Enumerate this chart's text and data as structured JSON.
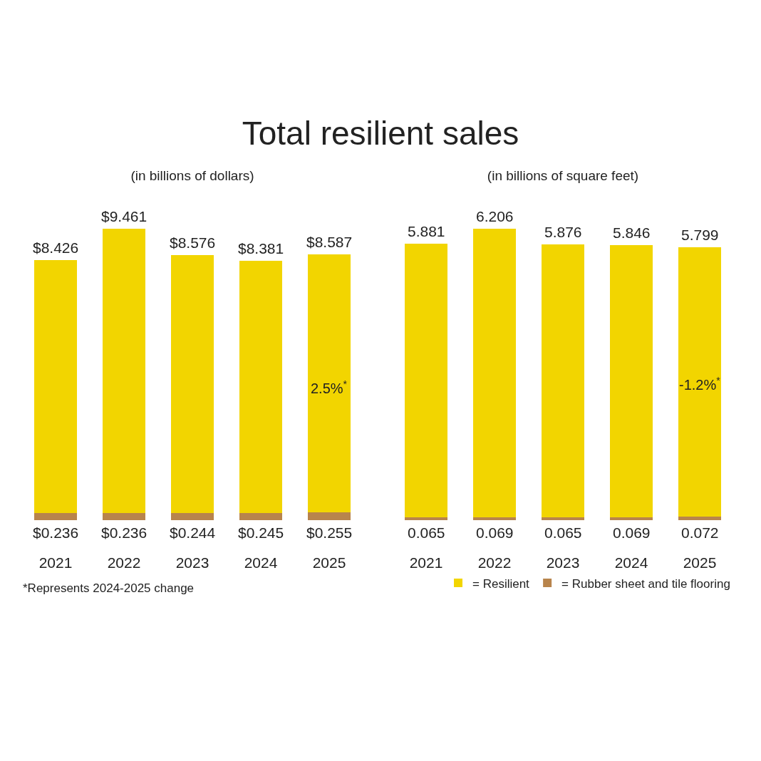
{
  "chart_data": [
    {
      "type": "bar",
      "title": "Total resilient sales",
      "subtitle": "(in billions of dollars)",
      "stacked": true,
      "categories": [
        "2021",
        "2022",
        "2023",
        "2024",
        "2025"
      ],
      "series": [
        {
          "color": "#b8844c",
          "values": [
            0.236,
            0.236,
            0.244,
            0.245,
            0.255
          ],
          "value_labels": [
            "$0.236",
            "$0.236",
            "$0.244",
            "$0.245",
            "$0.255"
          ]
        },
        {
          "color": "#f2d500",
          "values": [
            8.426,
            9.461,
            8.576,
            8.381,
            8.587
          ],
          "value_labels": [
            "$8.426",
            "$9.461",
            "$8.576",
            "$8.381",
            "$8.587"
          ]
        }
      ],
      "annotations": [
        "2.5%$^{*}$",
        "*Represents 2024-2025 change"
      ],
      "legend": false,
      "grid": false
    },
    {
      "type": "bar",
      "subtitle": "(in billions of square feet)",
      "stacked": true,
      "categories": [
        "2021",
        "2022",
        "2023",
        "2024",
        "2025"
      ],
      "series": [
        {
          "name": "= Rubber sheet and tile flooring",
          "color": "#b8844c",
          "values": [
            0.065,
            0.069,
            0.065,
            0.069,
            0.072
          ],
          "value_labels": [
            "0.065",
            "0.069",
            "0.065",
            "0.069",
            "0.072"
          ]
        },
        {
          "name": "= Resilient",
          "color": "#f2d500",
          "values": [
            5.881,
            6.206,
            5.876,
            5.846,
            5.799
          ],
          "value_labels": [
            "5.881",
            "6.206",
            "5.876",
            "5.846",
            "5.799"
          ]
        }
      ],
      "annotations": [
        "-1.2%$^{*}$"
      ],
      "legend": "bottom right",
      "grid": false
    }
  ]
}
